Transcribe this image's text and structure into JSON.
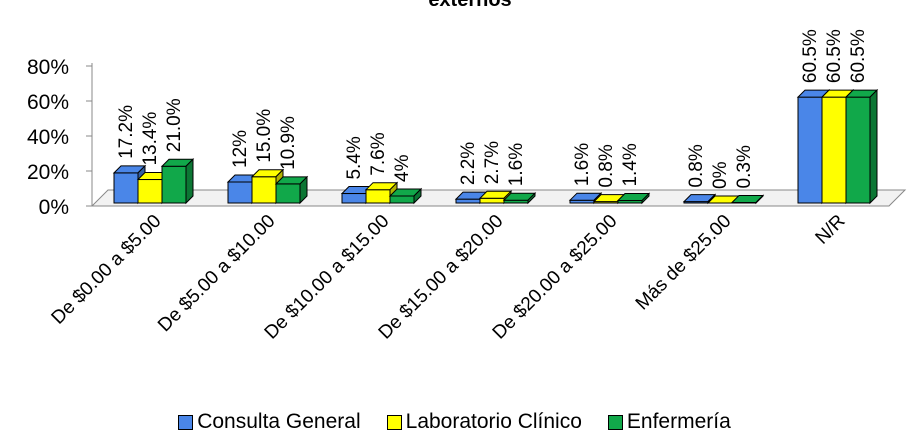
{
  "chart_data": {
    "type": "bar",
    "title": "externos",
    "categories": [
      "De $0.00 a $5.00",
      "De $5.00 a $10.00",
      "De $10.00 a $15.00",
      "De $15.00 a $20.00",
      "De $20.00 a $25.00",
      "Más de $25.00",
      "N/R"
    ],
    "series": [
      {
        "name": "Consulta General",
        "color": "#4a86e8",
        "values": [
          17.2,
          12,
          5.4,
          2.2,
          1.6,
          0.8,
          60.5
        ],
        "labels": [
          "17.2%",
          "12%",
          "5.4%",
          "2.2%",
          "1.6%",
          "0.8%",
          "60.5%"
        ]
      },
      {
        "name": "Laboratorio Clínico",
        "color": "#ffff00",
        "values": [
          13.4,
          15.0,
          7.6,
          2.7,
          0.8,
          0,
          60.5
        ],
        "labels": [
          "13.4%",
          "15.0%",
          "7.6%",
          "2.7%",
          "0.8%",
          "0%",
          "60.5%"
        ]
      },
      {
        "name": "Enfermería",
        "color": "#11a84a",
        "values": [
          21.0,
          10.9,
          4,
          1.6,
          1.4,
          0.3,
          60.5
        ],
        "labels": [
          "21.0%",
          "10.9%",
          "4%",
          "1.6%",
          "1.4%",
          "0.3%",
          "60.5%"
        ]
      }
    ],
    "yticks": [
      "0%",
      "20%",
      "40%",
      "60%",
      "80%"
    ],
    "ylim": [
      0,
      80
    ],
    "legend_position": "bottom",
    "grid": false
  }
}
